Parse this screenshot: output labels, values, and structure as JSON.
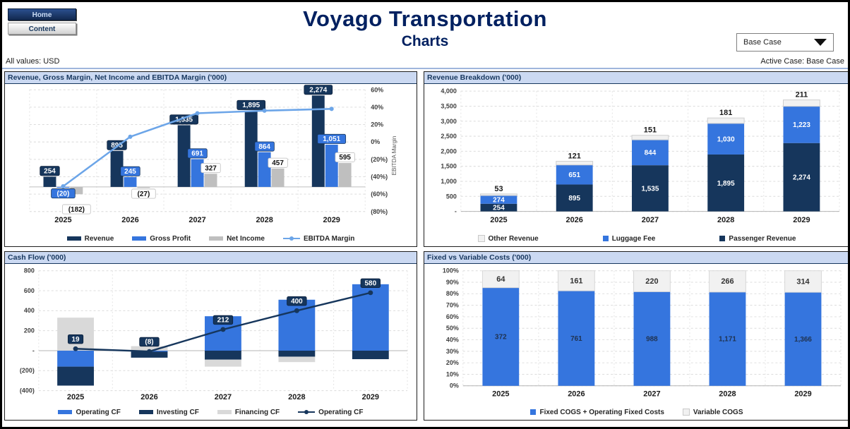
{
  "page": {
    "title": "Voyago Transportation",
    "subtitle": "Charts",
    "all_values": "All values: USD",
    "active_case": "Active Case: Base Case"
  },
  "nav": {
    "home_label": "Home",
    "content_label": "Content"
  },
  "case_selector": {
    "value": "Base Case"
  },
  "colors": {
    "navy": "#16365C",
    "blue": "#3575DE",
    "light_blue": "#6CA5E8",
    "gray": "#BFBFBF",
    "financing_gray": "#D9D9D9",
    "light_gray": "#F1F1F1",
    "title_navy": "#002060",
    "strip_bg": "#CBD9F2",
    "strip_text": "#17375E"
  },
  "chart_data": [
    {
      "id": "revenue-margin",
      "type": "bar",
      "title": "Revenue, Gross Margin, Net Income and EBITDA Margin ('000)",
      "categories": [
        "2025",
        "2026",
        "2027",
        "2028",
        "2029"
      ],
      "series": [
        {
          "name": "Revenue",
          "type": "bar",
          "color": "#16365C",
          "values": [
            254,
            895,
            1535,
            1895,
            2274
          ],
          "labels": [
            "254",
            "895",
            "1,535",
            "1,895",
            "2,274"
          ]
        },
        {
          "name": "Gross Profit",
          "type": "bar",
          "color": "#3575DE",
          "values": [
            -20,
            245,
            691,
            864,
            1051
          ],
          "labels": [
            "(20)",
            "245",
            "691",
            "864",
            "1,051"
          ]
        },
        {
          "name": "Net Income",
          "type": "bar",
          "color": "#BFBFBF",
          "values": [
            -182,
            -27,
            327,
            457,
            595
          ],
          "labels": [
            "(182)",
            "(27)",
            "327",
            "457",
            "595"
          ]
        },
        {
          "name": "EBITDA Margin",
          "type": "line",
          "axis": "right",
          "color": "#6CA5E8",
          "values_pct": [
            -51,
            6,
            33,
            36,
            38
          ]
        }
      ],
      "right_axis": {
        "title": "EBITDA Margin",
        "ticks": [
          "60%",
          "40%",
          "20%",
          "0%",
          "(20%)",
          "(40%)",
          "(60%)",
          "(80%)"
        ],
        "max_pct": 60,
        "min_pct": -80
      },
      "legend": [
        {
          "label": "Revenue",
          "swatch": "bar",
          "color": "#16365C"
        },
        {
          "label": "Gross Profit",
          "swatch": "bar",
          "color": "#3575DE"
        },
        {
          "label": "Net Income",
          "swatch": "bar",
          "color": "#BFBFBF"
        },
        {
          "label": "EBITDA Margin",
          "swatch": "line",
          "color": "#6CA5E8"
        }
      ]
    },
    {
      "id": "revenue-breakdown",
      "type": "bar",
      "title": "Revenue Breakdown ('000)",
      "categories": [
        "2025",
        "2026",
        "2027",
        "2028",
        "2029"
      ],
      "series": [
        {
          "name": "Passenger Revenue",
          "color": "#16365C",
          "values": [
            254,
            895,
            1535,
            1895,
            2274
          ],
          "labels": [
            "254",
            "895",
            "1,535",
            "1,895",
            "2,274"
          ]
        },
        {
          "name": "Luggage Fee",
          "color": "#3575DE",
          "values": [
            274,
            651,
            844,
            1030,
            1223
          ],
          "labels": [
            "274",
            "651",
            "844",
            "1,030",
            "1,223"
          ]
        },
        {
          "name": "Other Revenue",
          "color": "#F1F1F1",
          "values": [
            53,
            121,
            151,
            181,
            211
          ],
          "labels": [
            "53",
            "121",
            "151",
            "181",
            "211"
          ]
        }
      ],
      "y_axis": {
        "ticks": [
          "4,000",
          "3,500",
          "3,000",
          "2,500",
          "2,000",
          "1,500",
          "1,000",
          "500",
          "-"
        ],
        "max": 4000,
        "min": 0
      },
      "legend": [
        {
          "label": "Other Revenue",
          "swatch": "square",
          "color": "#F1F1F1",
          "border": "#C9C9C9"
        },
        {
          "label": "Luggage Fee",
          "swatch": "square",
          "color": "#3575DE"
        },
        {
          "label": "Passenger Revenue",
          "swatch": "square",
          "color": "#16365C"
        }
      ]
    },
    {
      "id": "cash-flow",
      "type": "bar",
      "title": "Cash Flow ('000)",
      "categories": [
        "2025",
        "2026",
        "2027",
        "2028",
        "2029"
      ],
      "series": [
        {
          "name": "Operating CF",
          "type": "bar",
          "color": "#3575DE",
          "values": [
            -160,
            -10,
            345,
            510,
            665
          ]
        },
        {
          "name": "Investing CF",
          "type": "bar",
          "color": "#16365C",
          "values": [
            -190,
            -60,
            -90,
            -60,
            -85
          ]
        },
        {
          "name": "Financing CF",
          "type": "bar",
          "color": "#D9D9D9",
          "values": [
            330,
            45,
            -70,
            -55,
            0
          ]
        },
        {
          "name": "Operating CF",
          "type": "line",
          "color": "#16365C",
          "values": [
            19,
            -8,
            212,
            400,
            580
          ],
          "labels": [
            "19",
            "(8)",
            "212",
            "400",
            "580"
          ]
        }
      ],
      "y_axis": {
        "ticks": [
          "800",
          "600",
          "400",
          "200",
          "-",
          "(200)",
          "(400)"
        ],
        "max": 800,
        "min": -400
      },
      "legend": [
        {
          "label": "Operating CF",
          "swatch": "bar",
          "color": "#3575DE"
        },
        {
          "label": "Investing CF",
          "swatch": "bar",
          "color": "#16365C"
        },
        {
          "label": "Financing CF",
          "swatch": "bar",
          "color": "#D9D9D9"
        },
        {
          "label": "Operating CF",
          "swatch": "line",
          "color": "#16365C"
        }
      ]
    },
    {
      "id": "fixed-vs-variable",
      "type": "bar",
      "title": "Fixed vs Variable Costs ('000)",
      "categories": [
        "2025",
        "2026",
        "2027",
        "2028",
        "2029"
      ],
      "series": [
        {
          "name": "Fixed COGS + Operating Fixed Costs",
          "color": "#3575DE",
          "values": [
            372,
            761,
            988,
            1171,
            1366
          ],
          "labels": [
            "372",
            "761",
            "988",
            "1,171",
            "1,366"
          ]
        },
        {
          "name": "Variable COGS",
          "color": "#F1F1F1",
          "values": [
            64,
            161,
            220,
            266,
            314
          ],
          "labels": [
            "64",
            "161",
            "220",
            "266",
            "314"
          ]
        }
      ],
      "y_axis": {
        "ticks": [
          "100%",
          "90%",
          "80%",
          "70%",
          "60%",
          "50%",
          "40%",
          "30%",
          "20%",
          "10%",
          "0%"
        ],
        "max": "100%",
        "min": "0%"
      },
      "legend": [
        {
          "label": "Fixed COGS + Operating Fixed Costs",
          "swatch": "square",
          "color": "#3575DE"
        },
        {
          "label": "Variable COGS",
          "swatch": "square",
          "color": "#F1F1F1",
          "border": "#C9C9C9"
        }
      ]
    }
  ]
}
